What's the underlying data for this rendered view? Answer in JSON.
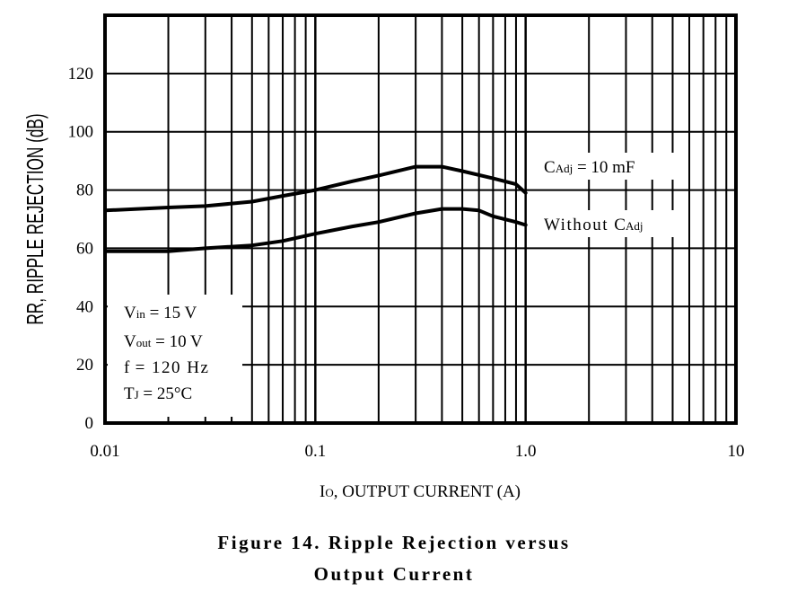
{
  "chart_data": {
    "type": "line",
    "title": "",
    "xscale": "log",
    "xlim": [
      0.01,
      10
    ],
    "ylim": [
      0,
      140
    ],
    "x_ticks": [
      "0.01",
      "0.1",
      "1.0",
      "10"
    ],
    "y_ticks": [
      "0",
      "20",
      "40",
      "60",
      "80",
      "100",
      "120"
    ],
    "xlabel": {
      "symbol": "I",
      "sub": "O",
      "text": ", OUTPUT CURRENT (A)"
    },
    "ylabel": "RR, RIPPLE REJECTION (dB)",
    "grid": true,
    "series": [
      {
        "label": {
          "symbol": "C",
          "sub": "Adj",
          "text": " = 10 mF"
        },
        "x": [
          0.01,
          0.02,
          0.03,
          0.05,
          0.07,
          0.1,
          0.15,
          0.2,
          0.3,
          0.4,
          0.5,
          0.7,
          0.9,
          1.0
        ],
        "y": [
          73,
          74,
          74.5,
          76,
          78,
          80,
          83,
          85,
          88,
          88,
          86.5,
          84,
          82,
          79
        ]
      },
      {
        "label": {
          "text": "Without ",
          "symbol": "C",
          "sub": "Adj"
        },
        "x": [
          0.01,
          0.02,
          0.03,
          0.05,
          0.07,
          0.1,
          0.15,
          0.2,
          0.3,
          0.4,
          0.5,
          0.6,
          0.7,
          0.9,
          1.0
        ],
        "y": [
          59,
          59,
          60,
          61,
          62.5,
          65,
          67.5,
          69,
          72,
          73.5,
          73.5,
          73,
          71,
          69,
          68
        ]
      }
    ],
    "conditions": [
      {
        "symbol": "V",
        "sub": "in",
        "text": " = 15 V"
      },
      {
        "symbol": "V",
        "sub": "out",
        "text": " = 10 V"
      },
      {
        "symbol": "f",
        "sub": "",
        "text": " = 120 Hz"
      },
      {
        "symbol": "T",
        "sub": "J",
        "text": " = 25°C"
      }
    ]
  },
  "caption": {
    "line1": "Figure 14. Ripple Rejection versus",
    "line2": "Output Current"
  }
}
